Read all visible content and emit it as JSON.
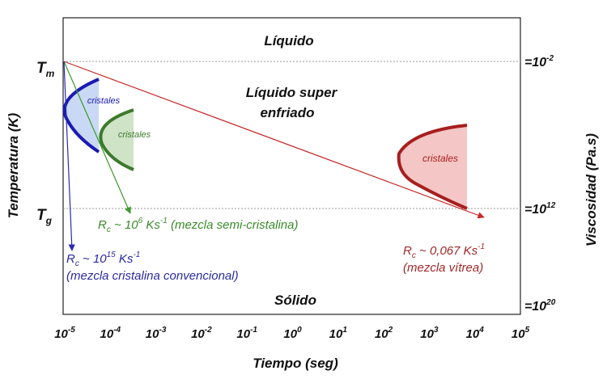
{
  "regions": {
    "liquid": "Líquido",
    "supercooled_line1": "Líquido super",
    "supercooled_line2": "enfriado",
    "solid": "Sólido"
  },
  "left_axis": {
    "label": "Temperatura (K)",
    "tm_main": "T",
    "tm_sub": "m",
    "tg_main": "T",
    "tg_sub": "g"
  },
  "right_axis": {
    "label": "Viscosidad (Pa.s)",
    "marks": [
      {
        "base": "=10",
        "exp": "-2"
      },
      {
        "base": "=10",
        "exp": "12"
      },
      {
        "base": "=10",
        "exp": "20"
      }
    ]
  },
  "x_axis": {
    "label": "Tiempo (seg)",
    "ticks": [
      {
        "base": "10",
        "exp": "-5"
      },
      {
        "base": "10",
        "exp": "-4"
      },
      {
        "base": "10",
        "exp": "-3"
      },
      {
        "base": "10",
        "exp": "-2"
      },
      {
        "base": "10",
        "exp": "-1"
      },
      {
        "base": "10",
        "exp": "0"
      },
      {
        "base": "10",
        "exp": "1"
      },
      {
        "base": "10",
        "exp": "2"
      },
      {
        "base": "10",
        "exp": "3"
      },
      {
        "base": "10",
        "exp": "4"
      },
      {
        "base": "10",
        "exp": "5"
      }
    ]
  },
  "crystal_label": "cristales",
  "rates": {
    "conventional": {
      "r": "R",
      "c": "c",
      "approx": " ~ 10",
      "exp": "15",
      "unit": " Ks",
      "unit_exp": "-1",
      "desc": "(mezcla cristalina convencional)",
      "color": "#2a2aa0"
    },
    "semicrystalline": {
      "r": "R",
      "c": "c",
      "approx": " ~ 10",
      "exp": "6",
      "unit": " Ks",
      "unit_exp": "-1",
      "desc": " (mezcla semi-cristalina)",
      "color": "#3a8a2a"
    },
    "vitreous": {
      "r": "R",
      "c": "c",
      "approx": " ~ 0,067 Ks",
      "unit_exp": "-1",
      "desc": "(mezcla vítrea)",
      "color": "#a02828"
    }
  },
  "colors": {
    "blue": "#1a1ab4",
    "blue_fill": "#c9d8f4",
    "green": "#3c7a2c",
    "green_fill": "#cfe3c6",
    "red": "#a81e1e",
    "red_fill": "#f4c6c6"
  }
}
